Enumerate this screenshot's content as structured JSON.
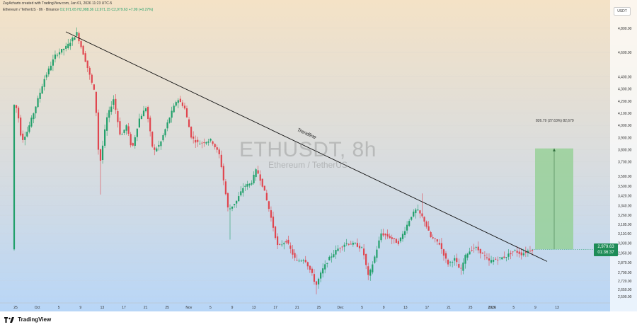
{
  "header": {
    "credit": "ZayAcharts created with TradingView.com, Jan 01, 2026 11:23 UTC-5",
    "symbol": "Ethereum / TetherUS · 8h · Binance",
    "ohlc": "O2,971.65 H2,988.36 L2,971.15 C2,979.63 +7.99 (+0.27%)"
  },
  "currency": "USDT",
  "watermark": {
    "ticker": "ETHUSDT, 8h",
    "name": "Ethereum / TetherUS"
  },
  "price_tag": {
    "price": "2,979.63",
    "countdown": "01:36:37"
  },
  "brand": "TradingView",
  "colors": {
    "up": "#22a06b",
    "down": "#e0464f",
    "range_box": "#8fcf8f",
    "bg_top": "#f4e2c6",
    "bg_bottom": "#b8d6f7"
  },
  "chart_data": {
    "type": "candlestick",
    "title": "ETHUSDT, 8h",
    "ylim": [
      2550,
      4950
    ],
    "y_ticks": [
      4800,
      4600,
      4400,
      4300,
      4200,
      4100,
      4000,
      3900,
      3800,
      3700,
      3580,
      3500,
      3420,
      3340,
      3260,
      3185,
      3110,
      3030,
      2950,
      2870,
      2790,
      2720,
      2650,
      2590
    ],
    "y_tick_labels": [
      "4,800.00",
      "4,600.00",
      "4,400.00",
      "4,300.00",
      "4,200.00",
      "4,100.00",
      "4,000.00",
      "3,900.00",
      "3,800.00",
      "3,700.00",
      "3,580.00",
      "3,500.00",
      "3,420.00",
      "3,340.00",
      "3,260.00",
      "3,185.00",
      "3,110.00",
      "3,030.00",
      "2,950.00",
      "2,870.00",
      "2,790.00",
      "2,720.00",
      "2,650.00",
      "2,590.00"
    ],
    "x_ticks": [
      "25",
      "Oct",
      "5",
      "9",
      "13",
      "17",
      "21",
      "25",
      "Nov",
      "5",
      "9",
      "13",
      "17",
      "21",
      "25",
      "Dec",
      "5",
      "9",
      "13",
      "17",
      "21",
      "25",
      "2026",
      "5",
      "9",
      "13"
    ],
    "price_path": [
      [
        4180,
        20
      ],
      [
        4130,
        26
      ],
      [
        3870,
        32
      ],
      [
        3950,
        40
      ],
      [
        4120,
        50
      ],
      [
        4380,
        64
      ],
      [
        4580,
        80
      ],
      [
        4650,
        96
      ],
      [
        4760,
        110
      ],
      [
        4500,
        124
      ],
      [
        4250,
        136
      ],
      [
        3650,
        142
      ],
      [
        4050,
        152
      ],
      [
        4220,
        162
      ],
      [
        3900,
        172
      ],
      [
        4000,
        180
      ],
      [
        3800,
        188
      ],
      [
        4050,
        198
      ],
      [
        4150,
        208
      ],
      [
        3780,
        218
      ],
      [
        3850,
        228
      ],
      [
        4050,
        240
      ],
      [
        4220,
        252
      ],
      [
        4150,
        262
      ],
      [
        3900,
        272
      ],
      [
        3850,
        282
      ],
      [
        3880,
        300
      ],
      [
        3750,
        312
      ],
      [
        3300,
        324
      ],
      [
        3380,
        336
      ],
      [
        3500,
        346
      ],
      [
        3520,
        356
      ],
      [
        3640,
        364
      ],
      [
        3480,
        374
      ],
      [
        3300,
        382
      ],
      [
        3000,
        394
      ],
      [
        3050,
        406
      ],
      [
        2880,
        420
      ],
      [
        2900,
        432
      ],
      [
        2780,
        442
      ],
      [
        2680,
        448
      ],
      [
        2800,
        456
      ],
      [
        2900,
        466
      ],
      [
        2980,
        478
      ],
      [
        3030,
        490
      ],
      [
        3020,
        504
      ],
      [
        2980,
        514
      ],
      [
        2750,
        522
      ],
      [
        2900,
        530
      ],
      [
        3110,
        540
      ],
      [
        3080,
        552
      ],
      [
        3030,
        564
      ],
      [
        3120,
        572
      ],
      [
        3250,
        582
      ],
      [
        3310,
        590
      ],
      [
        3230,
        600
      ],
      [
        3080,
        610
      ],
      [
        3030,
        622
      ],
      [
        2860,
        634
      ],
      [
        2900,
        644
      ],
      [
        2800,
        652
      ],
      [
        2940,
        660
      ],
      [
        3000,
        672
      ],
      [
        2960,
        680
      ],
      [
        2880,
        692
      ],
      [
        2900,
        704
      ],
      [
        2920,
        716
      ],
      [
        2970,
        728
      ],
      [
        2940,
        738
      ],
      [
        2979.63,
        752
      ]
    ],
    "trendline": {
      "start": [
        4770,
        93
      ],
      "end": [
        2880,
        773
      ],
      "label": "Trendline"
    },
    "range_box": {
      "top": 3810,
      "bottom": 2979.63,
      "label": "826.79 (27.63%) 82,679"
    },
    "last_price": 2979.63
  }
}
